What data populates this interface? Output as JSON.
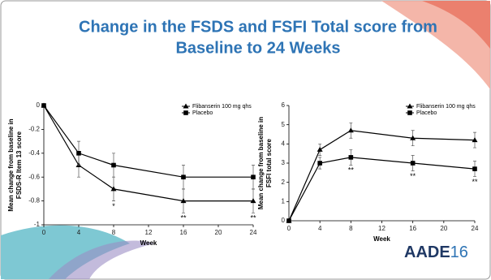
{
  "title": [
    "Change in the FSDS and FSFI Total score from",
    "Baseline to 24 Weeks"
  ],
  "logo": [
    "AADE",
    "16"
  ],
  "chart_data": [
    {
      "type": "line",
      "xlabel": "Week",
      "ylabel": [
        "Mean change from baseline in",
        "FSDS-R Item 13 score"
      ],
      "x": [
        0,
        4,
        8,
        16,
        24
      ],
      "xlim": [
        0,
        24
      ],
      "xticks": [
        0,
        4,
        8,
        12,
        16,
        20,
        24
      ],
      "ylim": [
        -1,
        0
      ],
      "yticks": [
        0,
        -0.2,
        -0.4,
        -0.6,
        -0.8,
        -1
      ],
      "legend": "upper right",
      "series": [
        {
          "name": "Flibanserin 100 mg qhs",
          "marker": "triangle",
          "color": "#000000",
          "values": [
            0,
            -0.5,
            -0.7,
            -0.8,
            -0.8
          ],
          "errors": [
            0,
            0.1,
            0.1,
            0.1,
            0.1
          ]
        },
        {
          "name": "Placebo",
          "marker": "square",
          "color": "#000000",
          "values": [
            0,
            -0.4,
            -0.5,
            -0.6,
            -0.6
          ],
          "errors": [
            0,
            0.1,
            0.1,
            0.1,
            0.1
          ]
        }
      ],
      "annotations": [
        {
          "x": 8,
          "text": "*"
        },
        {
          "x": 16,
          "text": "**"
        },
        {
          "x": 24,
          "text": "**"
        }
      ]
    },
    {
      "type": "line",
      "xlabel": "Week",
      "ylabel": [
        "Mean change from baseline in",
        "FSFI total score"
      ],
      "x": [
        0,
        4,
        8,
        16,
        24
      ],
      "xlim": [
        0,
        24
      ],
      "xticks": [
        0,
        4,
        8,
        12,
        16,
        20,
        24
      ],
      "ylim": [
        0,
        6
      ],
      "yticks": [
        0,
        1,
        2,
        3,
        4,
        5,
        6
      ],
      "legend": "upper right",
      "series": [
        {
          "name": "Flibanserin 100 mg qhs",
          "marker": "triangle",
          "color": "#000000",
          "values": [
            0,
            3.7,
            4.7,
            4.3,
            4.2
          ],
          "errors": [
            0,
            0.3,
            0.4,
            0.4,
            0.4
          ]
        },
        {
          "name": "Placebo",
          "marker": "square",
          "color": "#000000",
          "values": [
            0,
            3.0,
            3.3,
            3.0,
            2.7
          ],
          "errors": [
            0,
            0.3,
            0.4,
            0.4,
            0.4
          ]
        }
      ],
      "annotations": [
        {
          "x": 8,
          "text": "**"
        },
        {
          "x": 16,
          "text": "**"
        },
        {
          "x": 24,
          "text": "**"
        }
      ]
    }
  ]
}
